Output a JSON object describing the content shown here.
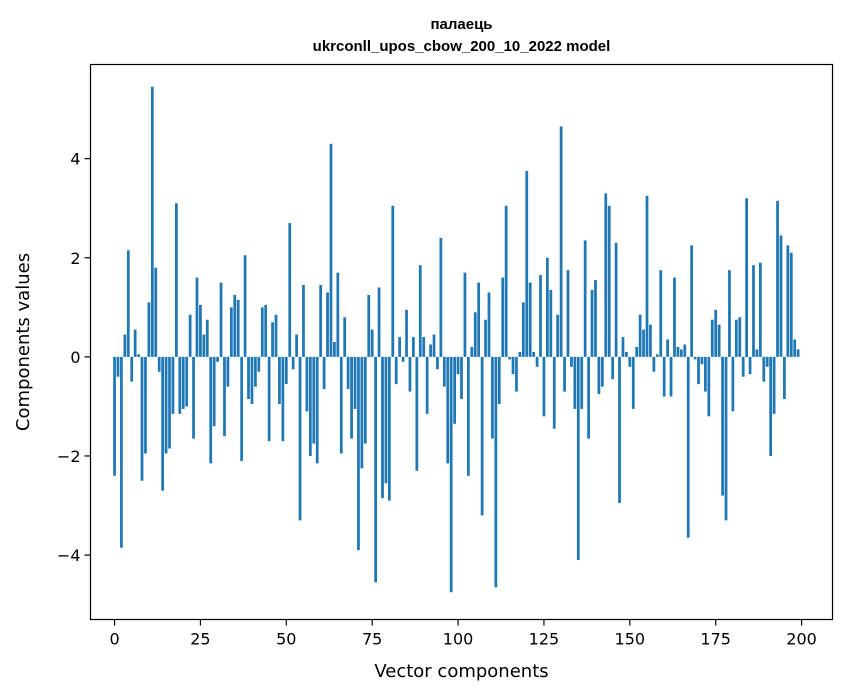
{
  "chart_data": {
    "type": "bar",
    "title": "палаець",
    "subtitle": "ukrconll_upos_cbow_200_10_2022 model",
    "xlabel": "Vector components",
    "ylabel": "Components values",
    "xlim": [
      -7,
      209
    ],
    "ylim": [
      -5.3,
      5.9
    ],
    "xticks": [
      0,
      25,
      50,
      75,
      100,
      125,
      150,
      175,
      200
    ],
    "xtick_labels": [
      "0",
      "25",
      "50",
      "75",
      "100",
      "125",
      "150",
      "175",
      "200"
    ],
    "yticks": [
      -4,
      -2,
      0,
      2,
      4
    ],
    "ytick_labels": [
      "−4",
      "−2",
      "0",
      "2",
      "4"
    ],
    "grid": false,
    "bar_color": "#1f77b4",
    "x": [
      0,
      1,
      2,
      3,
      4,
      5,
      6,
      7,
      8,
      9,
      10,
      11,
      12,
      13,
      14,
      15,
      16,
      17,
      18,
      19,
      20,
      21,
      22,
      23,
      24,
      25,
      26,
      27,
      28,
      29,
      30,
      31,
      32,
      33,
      34,
      35,
      36,
      37,
      38,
      39,
      40,
      41,
      42,
      43,
      44,
      45,
      46,
      47,
      48,
      49,
      50,
      51,
      52,
      53,
      54,
      55,
      56,
      57,
      58,
      59,
      60,
      61,
      62,
      63,
      64,
      65,
      66,
      67,
      68,
      69,
      70,
      71,
      72,
      73,
      74,
      75,
      76,
      77,
      78,
      79,
      80,
      81,
      82,
      83,
      84,
      85,
      86,
      87,
      88,
      89,
      90,
      91,
      92,
      93,
      94,
      95,
      96,
      97,
      98,
      99,
      100,
      101,
      102,
      103,
      104,
      105,
      106,
      107,
      108,
      109,
      110,
      111,
      112,
      113,
      114,
      115,
      116,
      117,
      118,
      119,
      120,
      121,
      122,
      123,
      124,
      125,
      126,
      127,
      128,
      129,
      130,
      131,
      132,
      133,
      134,
      135,
      136,
      137,
      138,
      139,
      140,
      141,
      142,
      143,
      144,
      145,
      146,
      147,
      148,
      149,
      150,
      151,
      152,
      153,
      154,
      155,
      156,
      157,
      158,
      159,
      160,
      161,
      162,
      163,
      164,
      165,
      166,
      167,
      168,
      169,
      170,
      171,
      172,
      173,
      174,
      175,
      176,
      177,
      178,
      179,
      180,
      181,
      182,
      183,
      184,
      185,
      186,
      187,
      188,
      189,
      190,
      191,
      192,
      193,
      194,
      195,
      196,
      197,
      198,
      199
    ],
    "values": [
      -2.4,
      -0.4,
      -3.85,
      0.45,
      2.15,
      -0.5,
      0.55,
      0.05,
      -2.5,
      -1.95,
      1.1,
      5.45,
      1.8,
      -0.3,
      -2.7,
      -1.95,
      -1.85,
      -1.15,
      3.1,
      -1.15,
      -1.05,
      -1.0,
      0.85,
      -1.65,
      1.6,
      1.05,
      0.45,
      0.75,
      -2.15,
      -1.4,
      -0.1,
      1.5,
      -1.6,
      -0.6,
      1.0,
      1.25,
      1.15,
      -2.1,
      2.05,
      -0.85,
      -0.95,
      -0.6,
      -0.3,
      1.0,
      1.05,
      -1.7,
      0.7,
      0.85,
      -0.95,
      -1.7,
      -0.55,
      2.7,
      -0.25,
      0.45,
      -3.3,
      1.45,
      -1.1,
      -2.0,
      -1.75,
      -2.15,
      1.45,
      -0.65,
      1.3,
      4.3,
      0.3,
      1.7,
      -1.95,
      0.8,
      -0.65,
      -1.65,
      -1.05,
      -3.9,
      -2.25,
      -1.75,
      1.25,
      0.55,
      -4.55,
      1.4,
      -2.85,
      -2.55,
      -2.9,
      3.05,
      -0.55,
      0.4,
      -0.1,
      0.95,
      -0.7,
      0.4,
      -2.3,
      1.85,
      0.4,
      -1.15,
      0.25,
      0.45,
      -0.25,
      2.4,
      -0.6,
      -2.15,
      -4.75,
      -1.35,
      -0.35,
      -0.85,
      1.7,
      -2.4,
      0.2,
      0.9,
      1.5,
      -3.2,
      0.75,
      1.3,
      -1.65,
      -4.65,
      -0.95,
      1.6,
      3.05,
      -0.05,
      -0.35,
      -0.7,
      0.1,
      1.1,
      3.75,
      1.5,
      0.1,
      -0.2,
      1.65,
      -1.2,
      2.0,
      1.35,
      -1.45,
      0.85,
      4.65,
      -0.7,
      1.75,
      -0.2,
      -1.05,
      -4.1,
      -1.05,
      2.35,
      -1.65,
      1.35,
      1.55,
      -0.75,
      -0.6,
      3.3,
      3.05,
      -0.45,
      2.3,
      -2.95,
      0.4,
      0.1,
      -0.2,
      -1.05,
      0.2,
      0.85,
      0.55,
      3.25,
      0.65,
      -0.3,
      0.05,
      1.75,
      -0.8,
      0.35,
      -0.8,
      1.6,
      0.2,
      0.15,
      0.25,
      -3.65,
      2.25,
      -0.05,
      -0.55,
      -0.15,
      -0.7,
      -1.2,
      0.75,
      0.95,
      0.65,
      -2.8,
      -3.3,
      1.75,
      -1.1,
      0.75,
      0.8,
      -0.4,
      3.2,
      -0.35,
      1.85,
      0.15,
      1.9,
      -0.5,
      -0.2,
      -2.0,
      -1.15,
      3.15,
      2.45,
      -0.85,
      2.25,
      2.1,
      0.35,
      0.15
    ]
  }
}
